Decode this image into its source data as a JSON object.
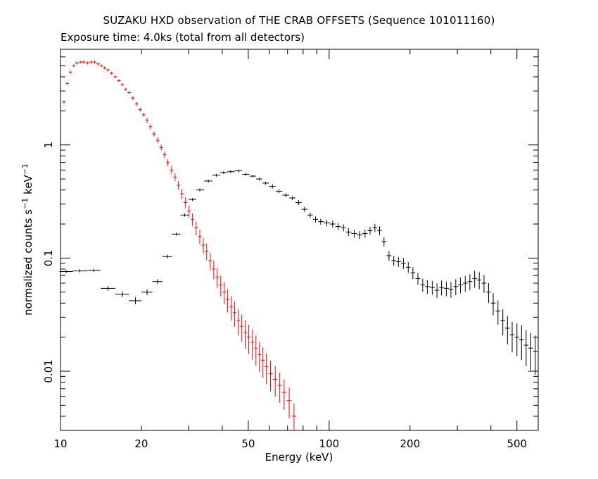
{
  "chart_data": {
    "type": "scatter",
    "title": "SUZAKU HXD observation of THE CRAB OFFSETS (Sequence 101011160)",
    "subtitle": "Exposure time: 4.0ks (total from all detectors)",
    "xlabel": "Energy (keV)",
    "ylabel": "normalized counts s-1 keV-1",
    "xscale": "log",
    "yscale": "log",
    "xlim": [
      10,
      600
    ],
    "ylim": [
      0.003,
      7
    ],
    "xticks": [
      10,
      20,
      50,
      100,
      200,
      500
    ],
    "xtick_labels": [
      "10",
      "20",
      "50",
      "100",
      "200",
      "500"
    ],
    "yticks": [
      0.01,
      0.1,
      1
    ],
    "ytick_labels": [
      "0.01",
      "0.1",
      "1"
    ],
    "grid": false,
    "series": [
      {
        "color": "#ff0000",
        "x": [
          10.3,
          10.6,
          10.9,
          11.2,
          11.5,
          11.9,
          12.2,
          12.6,
          13.0,
          13.4,
          13.8,
          14.2,
          14.6,
          15.0,
          15.5,
          16.0,
          16.5,
          17.0,
          17.5,
          18.0,
          18.6,
          19.2,
          19.8,
          20.4,
          21.0,
          21.6,
          22.3,
          23.0,
          23.7,
          24.4,
          25.1,
          25.9,
          26.7,
          27.5,
          28.3,
          29.2,
          30.1,
          31.0,
          32.0,
          33.0,
          34.0,
          35.0,
          36.1,
          37.2,
          38.3,
          39.5,
          40.7,
          41.9,
          43.2,
          44.5,
          45.9,
          47.3,
          48.7,
          50.2,
          51.8,
          53.4,
          55.0,
          56.7,
          58.4,
          60.5,
          63.0,
          65.5,
          68.0,
          71.0,
          74.0
        ],
        "y": [
          2.4,
          3.5,
          4.4,
          5.0,
          5.3,
          5.4,
          5.4,
          5.3,
          5.4,
          5.4,
          5.2,
          5.0,
          4.8,
          4.6,
          4.3,
          4.0,
          3.7,
          3.4,
          3.1,
          2.9,
          2.6,
          2.3,
          2.05,
          1.85,
          1.65,
          1.45,
          1.25,
          1.1,
          0.95,
          0.82,
          0.7,
          0.6,
          0.52,
          0.44,
          0.37,
          0.31,
          0.26,
          0.22,
          0.185,
          0.155,
          0.13,
          0.115,
          0.095,
          0.08,
          0.068,
          0.058,
          0.05,
          0.043,
          0.037,
          0.033,
          0.028,
          0.025,
          0.022,
          0.02,
          0.018,
          0.016,
          0.014,
          0.0125,
          0.011,
          0.0095,
          0.0085,
          0.0075,
          0.0065,
          0.0055,
          0.004
        ],
        "yerr_frac": [
          0.03,
          0.03,
          0.03,
          0.03,
          0.03,
          0.03,
          0.03,
          0.03,
          0.03,
          0.03,
          0.03,
          0.03,
          0.03,
          0.03,
          0.03,
          0.03,
          0.03,
          0.03,
          0.03,
          0.03,
          0.04,
          0.04,
          0.04,
          0.04,
          0.05,
          0.05,
          0.05,
          0.06,
          0.06,
          0.07,
          0.07,
          0.08,
          0.08,
          0.09,
          0.1,
          0.11,
          0.12,
          0.13,
          0.14,
          0.15,
          0.16,
          0.17,
          0.18,
          0.19,
          0.2,
          0.21,
          0.22,
          0.23,
          0.24,
          0.25,
          0.26,
          0.27,
          0.28,
          0.29,
          0.3,
          0.3,
          0.3,
          0.3,
          0.3,
          0.3,
          0.3,
          0.3,
          0.3,
          0.3,
          0.3
        ]
      },
      {
        "color": "#000000",
        "x": [
          10.5,
          11.8,
          13.3,
          15.0,
          17.0,
          19.0,
          21.0,
          23.0,
          25.0,
          27.0,
          29.0,
          31.0,
          33.0,
          35.5,
          38.0,
          40.5,
          43.0,
          46.0,
          49.0,
          52.0,
          55.0,
          58.0,
          61.5,
          65.0,
          69.0,
          73.0,
          77.0,
          81.0,
          85.0,
          89.0,
          93.0,
          98.0,
          103.0,
          108.0,
          113.0,
          118.0,
          124.0,
          130.0,
          136.0,
          142.0,
          148.0,
          154.0,
          160.0,
          167.0,
          174.0,
          181.0,
          189.0,
          197.0,
          205.0,
          214.0,
          223.0,
          232.0,
          242.0,
          252.0,
          262.0,
          273.0,
          284.0,
          296.0,
          308.0,
          321.0,
          334.0,
          348.0,
          362.0,
          377.0,
          392.0,
          408.0,
          425.0,
          443.0,
          461.0,
          480.0,
          500.0,
          520.0,
          541.0,
          563.0,
          585.0
        ],
        "y": [
          0.076,
          0.077,
          0.078,
          0.054,
          0.048,
          0.042,
          0.05,
          0.062,
          0.103,
          0.163,
          0.24,
          0.33,
          0.4,
          0.48,
          0.54,
          0.57,
          0.58,
          0.59,
          0.55,
          0.53,
          0.5,
          0.46,
          0.43,
          0.39,
          0.36,
          0.34,
          0.31,
          0.27,
          0.24,
          0.22,
          0.21,
          0.205,
          0.2,
          0.19,
          0.185,
          0.17,
          0.165,
          0.16,
          0.165,
          0.175,
          0.185,
          0.175,
          0.14,
          0.105,
          0.095,
          0.093,
          0.09,
          0.083,
          0.074,
          0.066,
          0.058,
          0.056,
          0.055,
          0.052,
          0.055,
          0.054,
          0.053,
          0.056,
          0.058,
          0.06,
          0.062,
          0.066,
          0.064,
          0.06,
          0.05,
          0.04,
          0.034,
          0.028,
          0.024,
          0.021,
          0.02,
          0.019,
          0.017,
          0.016,
          0.015
        ],
        "yerr_frac": [
          0.03,
          0.03,
          0.03,
          0.05,
          0.06,
          0.07,
          0.06,
          0.05,
          0.04,
          0.03,
          0.03,
          0.03,
          0.03,
          0.03,
          0.03,
          0.03,
          0.03,
          0.03,
          0.03,
          0.03,
          0.03,
          0.03,
          0.04,
          0.04,
          0.04,
          0.04,
          0.05,
          0.05,
          0.05,
          0.06,
          0.06,
          0.06,
          0.07,
          0.07,
          0.07,
          0.08,
          0.08,
          0.08,
          0.08,
          0.08,
          0.08,
          0.09,
          0.09,
          0.1,
          0.1,
          0.1,
          0.11,
          0.11,
          0.12,
          0.12,
          0.13,
          0.14,
          0.14,
          0.15,
          0.15,
          0.15,
          0.16,
          0.16,
          0.16,
          0.16,
          0.16,
          0.17,
          0.17,
          0.18,
          0.2,
          0.22,
          0.24,
          0.26,
          0.28,
          0.3,
          0.32,
          0.34,
          0.35,
          0.36,
          0.38
        ]
      }
    ]
  }
}
